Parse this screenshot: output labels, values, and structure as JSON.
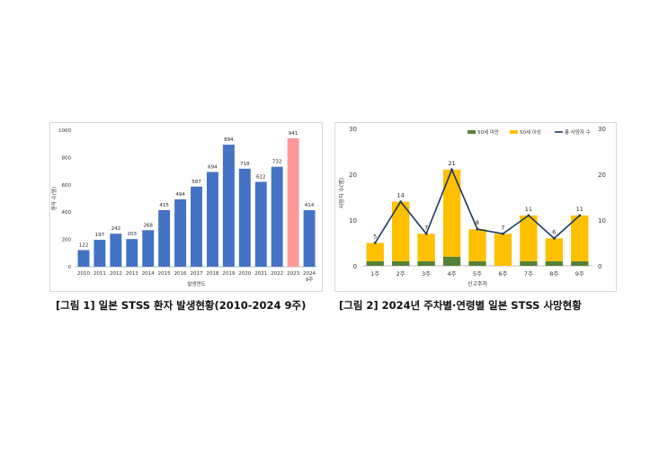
{
  "captions": {
    "fig1": "[그림 1] 일본 STSS 환자 발생현황(2010-2024 9주)",
    "fig2": "[그림 2] 2024년 주차별·연령별 일본 STSS 사망현황"
  },
  "chart_data": [
    {
      "type": "bar",
      "title": "",
      "xlabel": "발생연도",
      "ylabel": "환자 수(명)",
      "ylim": [
        0,
        1000
      ],
      "yticks": [
        0,
        200,
        400,
        600,
        800,
        1000
      ],
      "categories": [
        "2010",
        "2011",
        "2012",
        "2013",
        "2014",
        "2015",
        "2016",
        "2017",
        "2018",
        "2019",
        "2020",
        "2021",
        "2022",
        "2023",
        "2024\n9주"
      ],
      "values": [
        122,
        197,
        242,
        203,
        268,
        415,
        494,
        587,
        694,
        894,
        718,
        622,
        732,
        941,
        414
      ],
      "colors": {
        "default": "#4472c4",
        "highlight": "#ff9999"
      },
      "highlight_index": 13,
      "grid": false,
      "legend": "none"
    },
    {
      "type": "bar+line",
      "title": "",
      "xlabel": "신고주차",
      "ylabel": "사망자 수(명)",
      "ylim": [
        0,
        30
      ],
      "yticks": [
        0,
        10,
        20,
        30
      ],
      "y2ticks": [
        0,
        10,
        20,
        30
      ],
      "categories": [
        "1주",
        "2주",
        "3주",
        "4주",
        "5주",
        "6주",
        "7주",
        "8주",
        "9주"
      ],
      "stacked": true,
      "series": [
        {
          "name": "50세 미만",
          "type": "bar",
          "color": "#548235",
          "values": [
            1,
            1,
            1,
            2,
            1,
            0,
            1,
            1,
            1
          ]
        },
        {
          "name": "50세 이상",
          "type": "bar",
          "color": "#ffc000",
          "values": [
            4,
            13,
            6,
            19,
            7,
            7,
            10,
            5,
            10
          ]
        },
        {
          "name": "총 사망자 수",
          "type": "line",
          "color": "#1f3864",
          "values": [
            5,
            14,
            7,
            21,
            8,
            7,
            11,
            6,
            11
          ]
        }
      ],
      "grid": false,
      "legend": "top-right"
    }
  ]
}
